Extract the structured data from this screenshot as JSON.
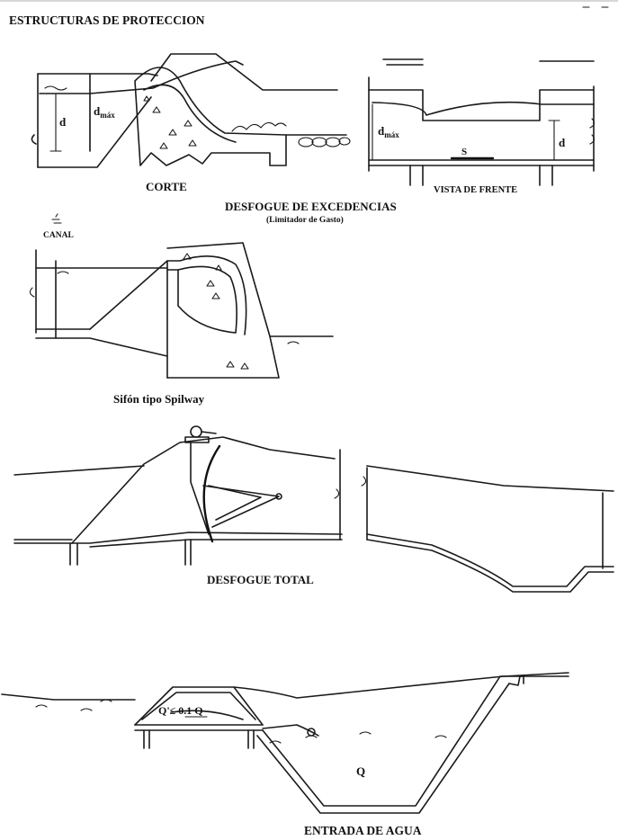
{
  "page_title": "ESTRUCTURAS DE PROTECCION",
  "fig1": {
    "section_label": "CORTE",
    "front_label": "VISTA DE FRENTE",
    "title": "DESFOGUE DE EXCEDENCIAS",
    "subtitle": "(Limitador de Gasto)",
    "d_left": "d",
    "dmax_left": "d",
    "dmax_left_sub": "máx",
    "dmax_right": "d",
    "dmax_right_sub": "máx",
    "d_right": "d",
    "s_label": "S"
  },
  "fig2": {
    "canal_label": "CANAL",
    "caption": "Sifón tipo Spilway"
  },
  "fig3": {
    "caption": "DESFOGUE TOTAL"
  },
  "fig4": {
    "q_small_label": "Q'≤ 0.1 Q",
    "q_label": "Q",
    "caption": "ENTRADA DE AGUA"
  }
}
